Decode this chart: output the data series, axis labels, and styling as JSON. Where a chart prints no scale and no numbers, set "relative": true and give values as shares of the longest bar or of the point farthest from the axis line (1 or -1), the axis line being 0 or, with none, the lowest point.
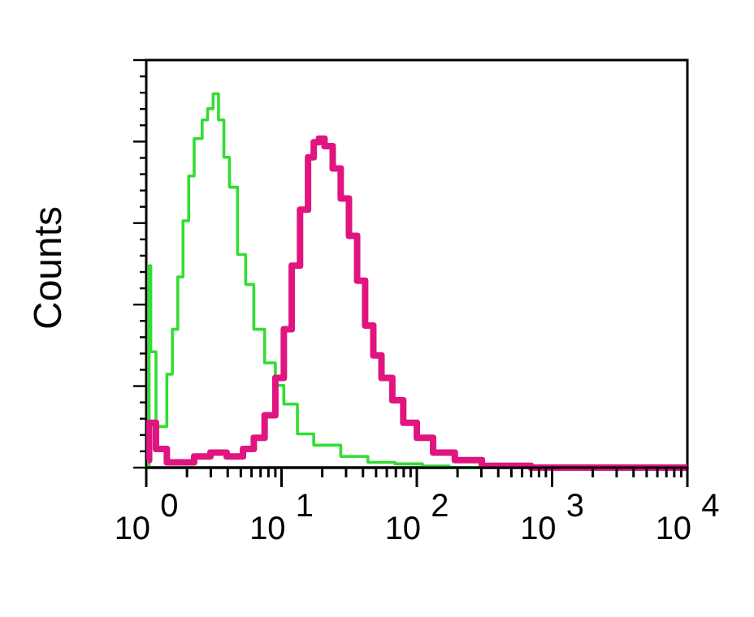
{
  "chart_data": {
    "type": "step",
    "ylabel": "Counts",
    "relative": true,
    "log": "x",
    "marker": "none",
    "xlim": [
      1,
      10000
    ],
    "xticks": [
      {
        "value": 1,
        "label": "10$^{0}$"
      },
      {
        "value": 2,
        "label": null
      },
      {
        "value": 3,
        "label": null
      },
      {
        "value": 4,
        "label": null
      },
      {
        "value": 5,
        "label": null
      },
      {
        "value": 6,
        "label": null
      },
      {
        "value": 7,
        "label": null
      },
      {
        "value": 8,
        "label": null
      },
      {
        "value": 9,
        "label": null
      },
      {
        "value": 10,
        "label": "10$^{1}$"
      },
      {
        "value": 20,
        "label": null
      },
      {
        "value": 30,
        "label": null
      },
      {
        "value": 40,
        "label": null
      },
      {
        "value": 50,
        "label": null
      },
      {
        "value": 60,
        "label": null
      },
      {
        "value": 70,
        "label": null
      },
      {
        "value": 80,
        "label": null
      },
      {
        "value": 90,
        "label": null
      },
      {
        "value": 100,
        "label": "10$^{2}$"
      },
      {
        "value": 200,
        "label": null
      },
      {
        "value": 300,
        "label": null
      },
      {
        "value": 400,
        "label": null
      },
      {
        "value": 500,
        "label": null
      },
      {
        "value": 600,
        "label": null
      },
      {
        "value": 700,
        "label": null
      },
      {
        "value": 800,
        "label": null
      },
      {
        "value": 900,
        "label": null
      },
      {
        "value": 1000,
        "label": "10$^{3}$"
      },
      {
        "value": 2000,
        "label": null
      },
      {
        "value": 3000,
        "label": null
      },
      {
        "value": 4000,
        "label": null
      },
      {
        "value": 5000,
        "label": null
      },
      {
        "value": 6000,
        "label": null
      },
      {
        "value": 7000,
        "label": null
      },
      {
        "value": 8000,
        "label": null
      },
      {
        "value": 9000,
        "label": null
      },
      {
        "value": 10000,
        "label": "10$^{4}$"
      }
    ],
    "series": [
      {
        "color": "#33dd33",
        "x": [
          1.03,
          1.05,
          1.08,
          1.18,
          1.29,
          1.42,
          1.56,
          1.71,
          1.87,
          2.06,
          2.26,
          2.59,
          2.84,
          3.12,
          3.42,
          3.75,
          4.12,
          4.73,
          5.43,
          6.24,
          7.5,
          9.0,
          10.4,
          13.1,
          17.3,
          27.4,
          43.5,
          69,
          110,
          174,
          10000
        ],
        "values": [
          0,
          0.54,
          0.31,
          0.11,
          0.11,
          0.25,
          0.37,
          0.51,
          0.66,
          0.78,
          0.88,
          0.93,
          0.96,
          1,
          0.93,
          0.83,
          0.75,
          0.57,
          0.49,
          0.37,
          0.28,
          0.22,
          0.17,
          0.09,
          0.06,
          0.03,
          0.014,
          0.01,
          0.004,
          0,
          0
        ]
      },
      {
        "color": "#e0157f",
        "x": [
          1.03,
          1.05,
          1.18,
          1.42,
          2.26,
          2.98,
          3.93,
          5.19,
          6.24,
          7.5,
          9.0,
          10.4,
          11.9,
          13.7,
          15.7,
          17.3,
          18.9,
          20.8,
          23.9,
          27.4,
          31.5,
          36.2,
          41.5,
          47.7,
          54.8,
          65.9,
          79.4,
          100,
          132,
          191,
          303,
          697,
          10000
        ],
        "values": [
          0.02,
          0.12,
          0.05,
          0.014,
          0.03,
          0.04,
          0.03,
          0.05,
          0.08,
          0.14,
          0.24,
          0.37,
          0.54,
          0.69,
          0.83,
          0.87,
          0.88,
          0.86,
          0.8,
          0.72,
          0.62,
          0.5,
          0.38,
          0.3,
          0.24,
          0.18,
          0.12,
          0.08,
          0.04,
          0.02,
          0.005,
          0,
          0
        ]
      }
    ]
  }
}
